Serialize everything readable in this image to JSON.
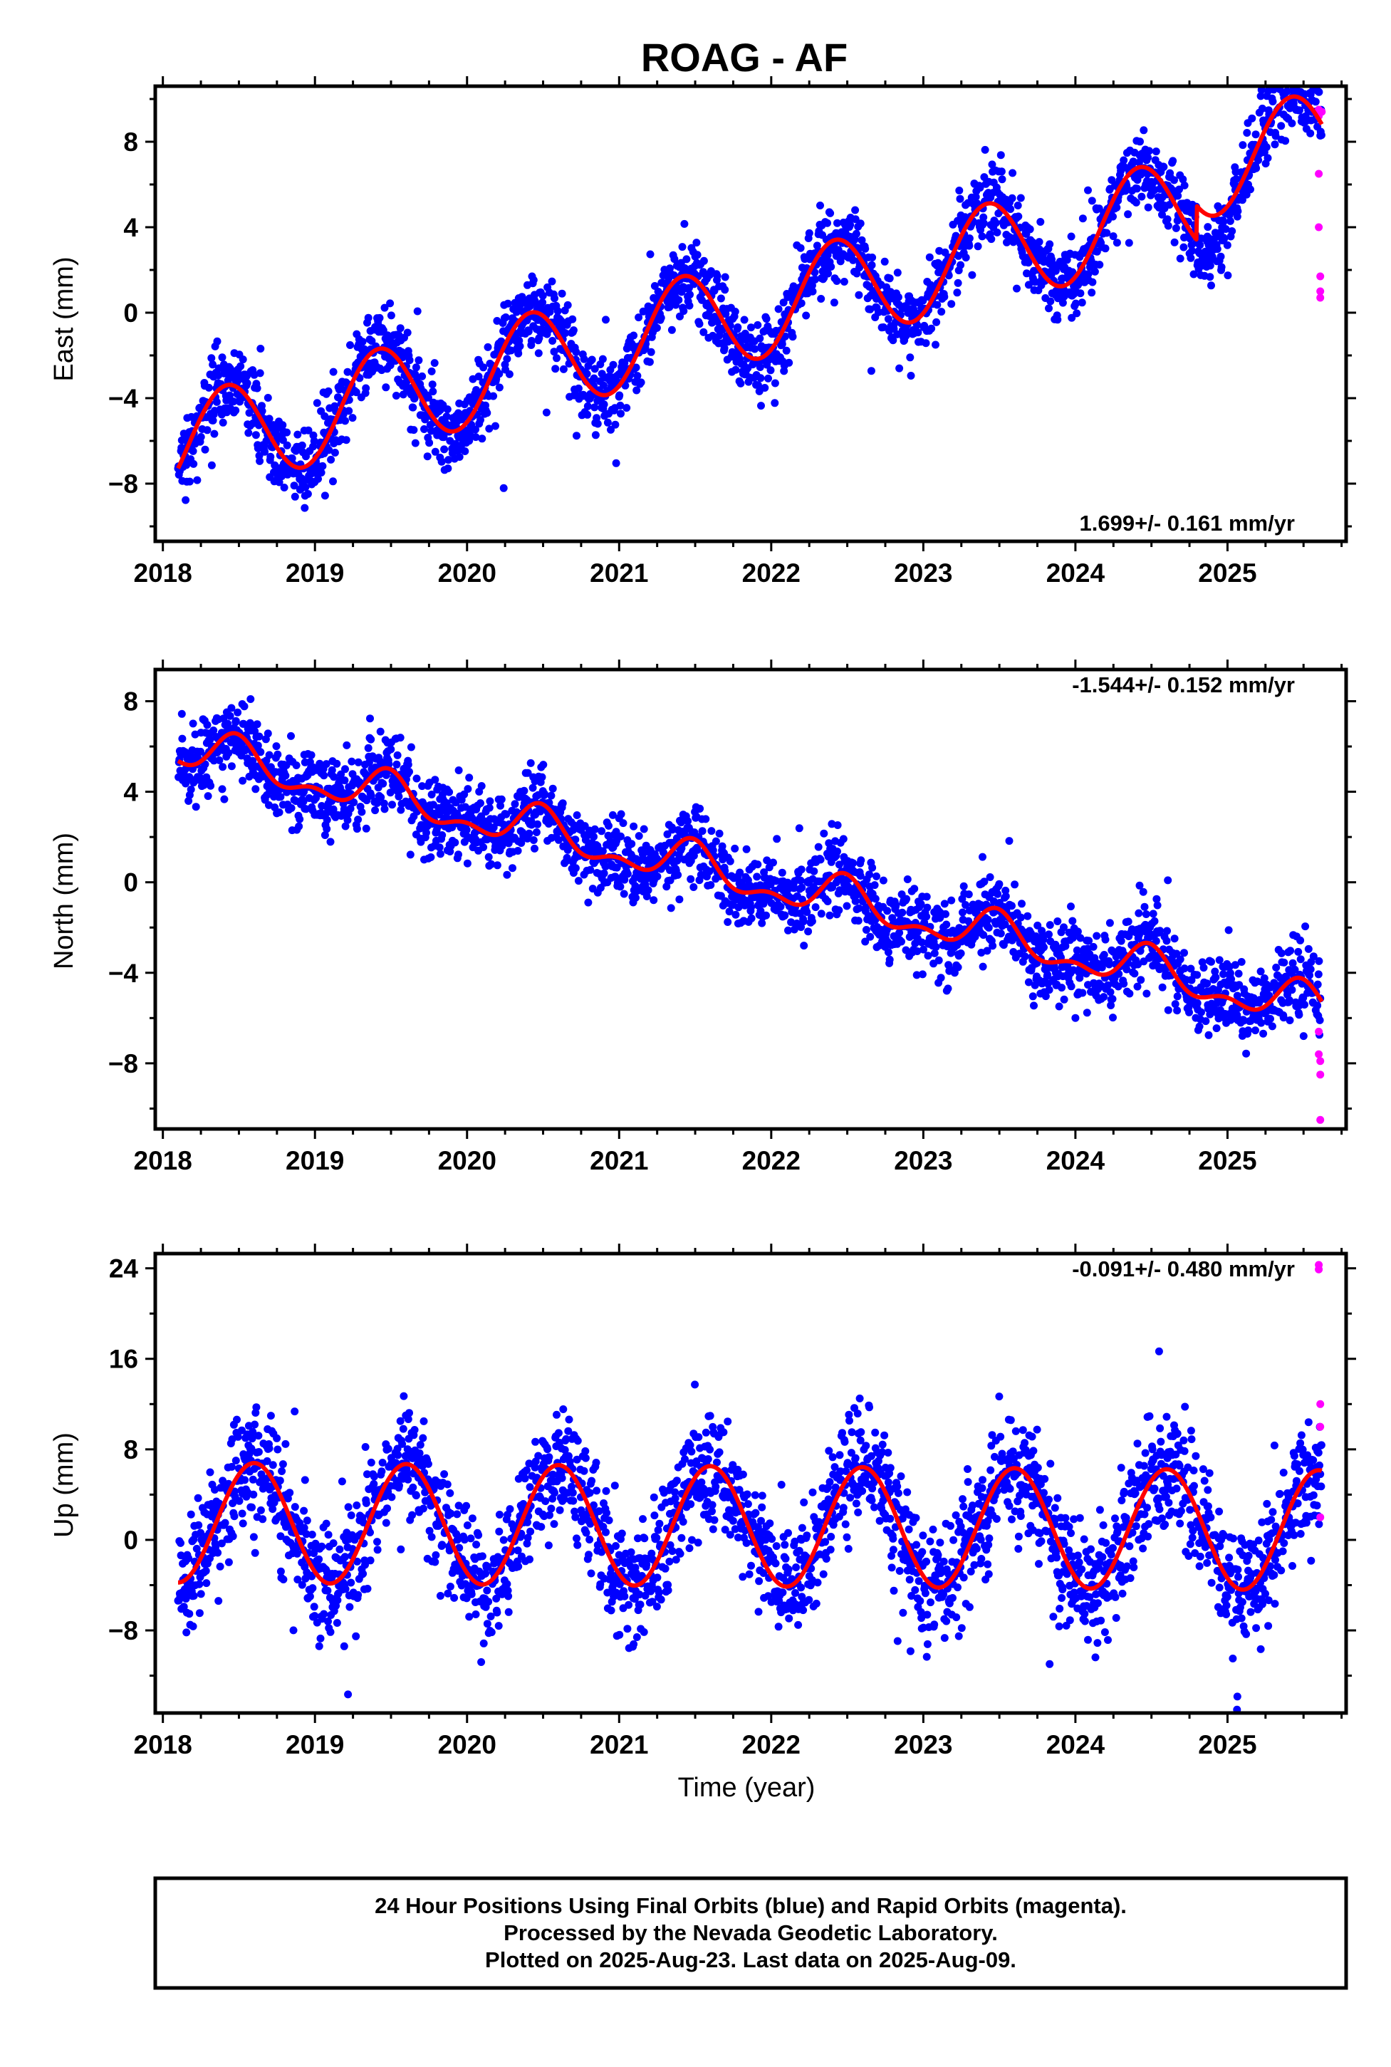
{
  "chart_data": [
    {
      "type": "scatter",
      "title": "ROAG - AF",
      "ylabel": "East (mm)",
      "xlim": [
        2017.95,
        2025.78
      ],
      "ylim": [
        -10.7,
        10.6
      ],
      "yticks": [
        -8,
        -4,
        0,
        4,
        8
      ],
      "xticks": [
        2018,
        2019,
        2020,
        2021,
        2022,
        2023,
        2024,
        2025
      ],
      "rate_label": "1.699+/- 0.161 mm/yr",
      "rate_position": "bottom-right",
      "colors": {
        "final": "#0000ff",
        "rapid": "#ff00ff",
        "model": "#ff0000"
      },
      "model": {
        "x0": 2021.8,
        "offset": 0.0,
        "slope": 1.699,
        "annual_amp": 2.35,
        "annual_peak": 0.42,
        "semi_amp": 0.0,
        "semi_peak": 0.0,
        "t_start": 2018.1,
        "t_end": 2025.62,
        "extra_offset_after": 2024.8,
        "extra_offset": 1.6,
        "noise": 0.9
      },
      "rapid_points": {
        "x": [
          2025.6,
          2025.6,
          2025.6,
          2025.6,
          2025.61,
          2025.61,
          2025.61,
          2025.62
        ],
        "y": [
          9.5,
          9.2,
          6.5,
          4.0,
          1.7,
          1.0,
          0.7,
          9.4
        ]
      }
    },
    {
      "type": "scatter",
      "title": "",
      "ylabel": "North (mm)",
      "xlim": [
        2017.95,
        2025.78
      ],
      "ylim": [
        -10.9,
        9.4
      ],
      "yticks": [
        -8,
        -4,
        0,
        4,
        8
      ],
      "xticks": [
        2018,
        2019,
        2020,
        2021,
        2022,
        2023,
        2024,
        2025
      ],
      "rate_label": "-1.544+/- 0.152 mm/yr",
      "rate_position": "top-right",
      "colors": {
        "final": "#0000ff",
        "rapid": "#ff00ff",
        "model": "#ff0000"
      },
      "model": {
        "x0": 2021.8,
        "offset": 0.2,
        "slope": -1.544,
        "annual_amp": 0.8,
        "annual_peak": 0.48,
        "semi_amp": 0.45,
        "semi_peak": 0.48,
        "t_start": 2018.1,
        "t_end": 2025.62,
        "extra_offset_after": 9999,
        "extra_offset": 0,
        "noise": 0.85
      },
      "rapid_points": {
        "x": [
          2025.6,
          2025.6,
          2025.61,
          2025.61,
          2025.61
        ],
        "y": [
          -6.6,
          -7.6,
          -7.9,
          -8.5,
          -10.5
        ]
      }
    },
    {
      "type": "scatter",
      "title": "",
      "ylabel": "Up (mm)",
      "xlabel": "Time (year)",
      "xlim": [
        2017.95,
        2025.78
      ],
      "ylim": [
        -15.3,
        25.3
      ],
      "yticks": [
        -8,
        0,
        8,
        16,
        24
      ],
      "xticks": [
        2018,
        2019,
        2020,
        2021,
        2022,
        2023,
        2024,
        2025
      ],
      "rate_label": "-0.091+/- 0.480 mm/yr",
      "rate_position": "top-right",
      "colors": {
        "final": "#0000ff",
        "rapid": "#ff00ff",
        "model": "#ff0000"
      },
      "model": {
        "x0": 2021.8,
        "offset": 1.2,
        "slope": -0.091,
        "annual_amp": 5.3,
        "annual_peak": 0.6,
        "semi_amp": 0.0,
        "semi_peak": 0.0,
        "t_start": 2018.1,
        "t_end": 2025.62,
        "extra_offset_after": 9999,
        "extra_offset": 0,
        "noise": 2.6
      },
      "rapid_points": {
        "x": [
          2025.6,
          2025.6,
          2025.61,
          2025.61,
          2025.61
        ],
        "y": [
          24.3,
          23.9,
          12.0,
          10.0,
          2.0
        ]
      }
    }
  ],
  "footer": {
    "line1": "24 Hour Positions Using Final Orbits (blue) and Rapid Orbits (magenta).",
    "line2": "Processed by the Nevada Geodetic Laboratory.",
    "line3": "Plotted on 2025-Aug-23. Last data on 2025-Aug-09."
  }
}
